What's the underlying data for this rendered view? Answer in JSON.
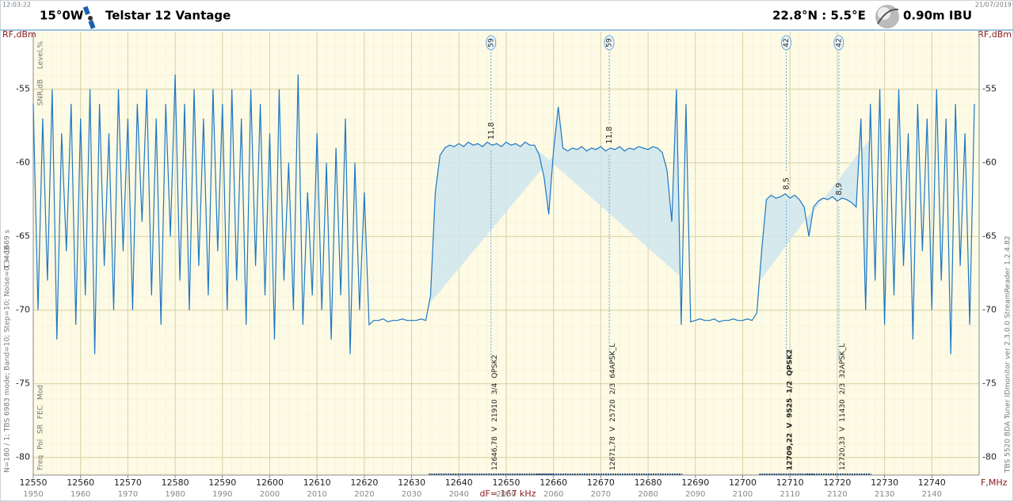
{
  "chart_data": {
    "type": "line",
    "header": {
      "time": "12:03:22",
      "date": "21/07/2019",
      "orbital": "15°0W",
      "satellite": "Telstar 12 Vantage",
      "location": "22.8°N : 5.5°E",
      "antenna": "0.90m  IBU"
    },
    "ylabel": "RF,dBm",
    "xlabel": "F,MHz",
    "resolution": "dF= 167 kHz",
    "side_labels": {
      "level": "Level,%",
      "snr": "SNR,dB",
      "time": "T = 1669 s",
      "setup": "N=180 / 1; TBS 6983 mode; Band=10; Step=10; Noise=0,34dB",
      "columns": "Freq  Pol  SR  FEC  Mod",
      "software": "TBS 5520 BDA Tuner   IDmonitor  ver 2.3.0.0   StreamReader 1.2.4.82"
    },
    "color": "#1f77c4",
    "fill_color": "#cfe5ee",
    "xlim": [
      12550,
      12750
    ],
    "ylim": [
      -81.2,
      -51.1
    ],
    "xticks": [
      12550,
      12560,
      12570,
      12580,
      12590,
      12600,
      12610,
      12620,
      12630,
      12640,
      12650,
      12660,
      12670,
      12680,
      12690,
      12700,
      12710,
      12720,
      12730,
      12740
    ],
    "if_ticks": [
      1950,
      1960,
      1970,
      1980,
      1990,
      2000,
      2010,
      2020,
      2030,
      2040,
      2050,
      2060,
      2070,
      2080,
      2090,
      2100,
      2110,
      2120,
      2130,
      2140
    ],
    "yticks": [
      -55,
      -60,
      -65,
      -70,
      -75,
      -80
    ],
    "grid": true,
    "x": [
      12550,
      12551,
      12552,
      12553,
      12554,
      12555,
      12556,
      12557,
      12558,
      12559,
      12560,
      12561,
      12562,
      12563,
      12564,
      12565,
      12566,
      12567,
      12568,
      12569,
      12570,
      12571,
      12572,
      12573,
      12574,
      12575,
      12576,
      12577,
      12578,
      12579,
      12580,
      12581,
      12582,
      12583,
      12584,
      12585,
      12586,
      12587,
      12588,
      12589,
      12590,
      12591,
      12592,
      12593,
      12594,
      12595,
      12596,
      12597,
      12598,
      12599,
      12600,
      12601,
      12602,
      12603,
      12604,
      12605,
      12606,
      12607,
      12608,
      12609,
      12610,
      12611,
      12612,
      12613,
      12614,
      12615,
      12616,
      12617,
      12618,
      12619,
      12620,
      12621,
      12622,
      12623,
      12624,
      12625,
      12626,
      12627,
      12628,
      12629,
      12630,
      12631,
      12632,
      12633,
      12634,
      12635,
      12636,
      12637,
      12638,
      12639,
      12640,
      12641,
      12642,
      12643,
      12644,
      12645,
      12646,
      12647,
      12648,
      12649,
      12650,
      12651,
      12652,
      12653,
      12654,
      12655,
      12656,
      12657,
      12658,
      12659,
      12660,
      12661,
      12662,
      12663,
      12664,
      12665,
      12666,
      12667,
      12668,
      12669,
      12670,
      12671,
      12672,
      12673,
      12674,
      12675,
      12676,
      12677,
      12678,
      12679,
      12680,
      12681,
      12682,
      12683,
      12684,
      12685,
      12686,
      12687,
      12688,
      12689,
      12690,
      12691,
      12692,
      12693,
      12694,
      12695,
      12696,
      12697,
      12698,
      12699,
      12700,
      12701,
      12702,
      12703,
      12704,
      12705,
      12706,
      12707,
      12708,
      12709,
      12710,
      12711,
      12712,
      12713,
      12714,
      12715,
      12716,
      12717,
      12718,
      12719,
      12720,
      12721,
      12722,
      12723,
      12724,
      12725,
      12726,
      12727,
      12728,
      12729,
      12730,
      12731,
      12732,
      12733,
      12734,
      12735,
      12736,
      12737,
      12738,
      12739,
      12740,
      12741,
      12742,
      12743,
      12744,
      12745,
      12746,
      12747,
      12748,
      12749
    ],
    "values": [
      -56,
      -70,
      -57,
      -68,
      -55,
      -72,
      -58,
      -66,
      -56,
      -71,
      -57,
      -69,
      -55,
      -73,
      -56,
      -67,
      -58,
      -70,
      -55,
      -66,
      -57,
      -70,
      -56,
      -64,
      -55,
      -69,
      -57,
      -71,
      -56,
      -65,
      -54,
      -68,
      -56,
      -70,
      -55,
      -67,
      -57,
      -69,
      -55,
      -66,
      -56,
      -70,
      -55,
      -68,
      -57,
      -71,
      -55,
      -67,
      -56,
      -69,
      -58,
      -72,
      -55,
      -68,
      -60,
      -70,
      -54,
      -71,
      -62,
      -69,
      -58,
      -70,
      -60,
      -72,
      -59,
      -69,
      -57,
      -73,
      -60,
      -70,
      -62,
      -71,
      -70.7,
      -70.7,
      -70.6,
      -70.8,
      -70.7,
      -70.7,
      -70.6,
      -70.7,
      -70.7,
      -70.7,
      -70.6,
      -70.7,
      -69,
      -62,
      -59.5,
      -59,
      -58.8,
      -58.9,
      -58.7,
      -58.9,
      -58.6,
      -58.8,
      -58.7,
      -58.9,
      -58.6,
      -58.8,
      -58.7,
      -58.9,
      -58.6,
      -58.8,
      -58.7,
      -58.9,
      -58.6,
      -58.8,
      -58.8,
      -59.5,
      -61,
      -63.5,
      -59.2,
      -56.2,
      -59,
      -59.2,
      -59,
      -59.1,
      -58.9,
      -59.2,
      -59,
      -59.1,
      -58.9,
      -59.2,
      -59,
      -59.1,
      -58.9,
      -59.2,
      -59,
      -59.1,
      -58.9,
      -59.0,
      -59.1,
      -58.9,
      -59,
      -59.3,
      -60.5,
      -64,
      -55,
      -71,
      -56,
      -70.8,
      -70.7,
      -70.6,
      -70.7,
      -70.7,
      -70.6,
      -70.8,
      -70.7,
      -70.7,
      -70.6,
      -70.7,
      -70.7,
      -70.6,
      -70.7,
      -70.2,
      -66,
      -62.5,
      -62.2,
      -62.4,
      -62.3,
      -62.1,
      -62.4,
      -62.2,
      -62.5,
      -63,
      -65,
      -63,
      -62.6,
      -62.4,
      -62.5,
      -62.3,
      -62.6,
      -62.4,
      -62.5,
      -62.7,
      -63,
      -57,
      -70,
      -56,
      -68,
      -55,
      -71,
      -57,
      -69,
      -55,
      -67,
      -58,
      -72,
      -56,
      -66,
      -57,
      -70,
      -55,
      -68,
      -57,
      -73,
      -56,
      -67,
      -58,
      -71,
      -56
    ],
    "carriers": [
      {
        "freq": {
          "value": 12646.78,
          "label": "12646,78"
        },
        "pol": "V",
        "sr": 21910,
        "fec": "3/4",
        "mod": "QPSK2",
        "level": 59,
        "snr": "11,8"
      },
      {
        "freq": {
          "value": 12671.78,
          "label": "12671,78"
        },
        "pol": "V",
        "sr": 25720,
        "fec": "2/3",
        "mod": "64APSK_L",
        "level": 59,
        "snr": "11,8"
      },
      {
        "freq": {
          "value": 12709.22,
          "label": "12709,22"
        },
        "pol": "V",
        "sr": 9525,
        "fec": "1/2",
        "mod": "QPSK2",
        "level": 42,
        "snr": "8,5"
      },
      {
        "freq": {
          "value": 12720.33,
          "label": "12720,33"
        },
        "pol": "V",
        "sr": 11430,
        "fec": "2/3",
        "mod": "32APSK_L",
        "level": 42,
        "snr": "8,9"
      }
    ]
  }
}
